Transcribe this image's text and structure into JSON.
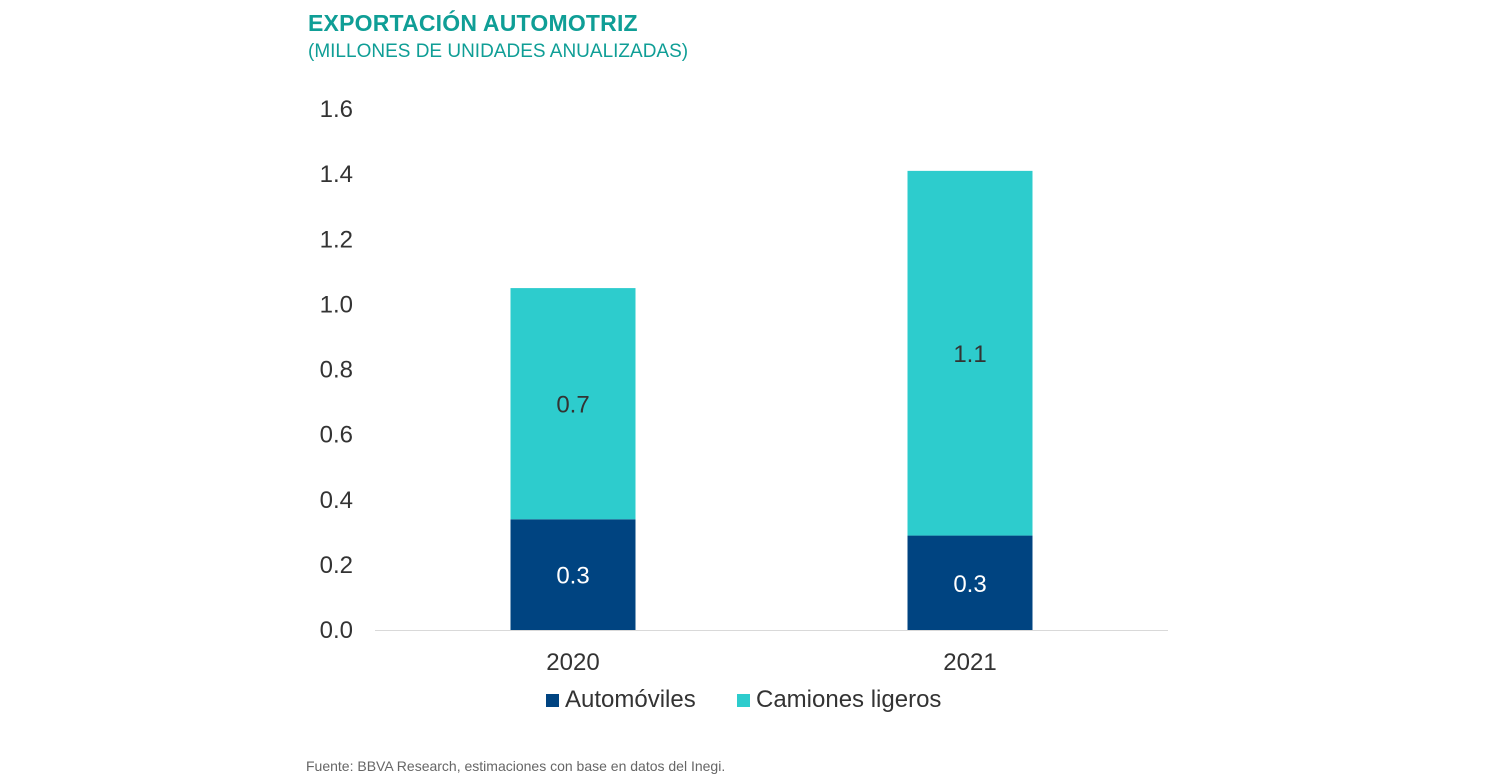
{
  "header": {
    "title": "EXPORTACIÓN AUTOMOTRIZ",
    "subtitle": "(MILLONES DE UNIDADES ANUALIZADAS)"
  },
  "chart_data": {
    "type": "bar",
    "stacked": true,
    "categories": [
      "2020",
      "2021"
    ],
    "series": [
      {
        "name": "Automóviles",
        "color": "#004481",
        "values": [
          0.34,
          0.29
        ],
        "labels": [
          "0.3",
          "0.3"
        ],
        "label_color": "#ffffff"
      },
      {
        "name": "Camiones ligeros",
        "color": "#2dcccd",
        "values": [
          0.71,
          1.12
        ],
        "labels": [
          "0.7",
          "1.1"
        ],
        "label_color": "#333333"
      }
    ],
    "y_ticks": [
      "0.0",
      "0.2",
      "0.4",
      "0.6",
      "0.8",
      "1.0",
      "1.2",
      "1.4",
      "1.6"
    ],
    "ylim": [
      0,
      1.6
    ],
    "grid": false,
    "legend_position": "bottom",
    "axis_color": "#d9d9d9"
  },
  "footer": {
    "source": "Fuente: BBVA Research, estimaciones con base en datos del Inegi."
  }
}
